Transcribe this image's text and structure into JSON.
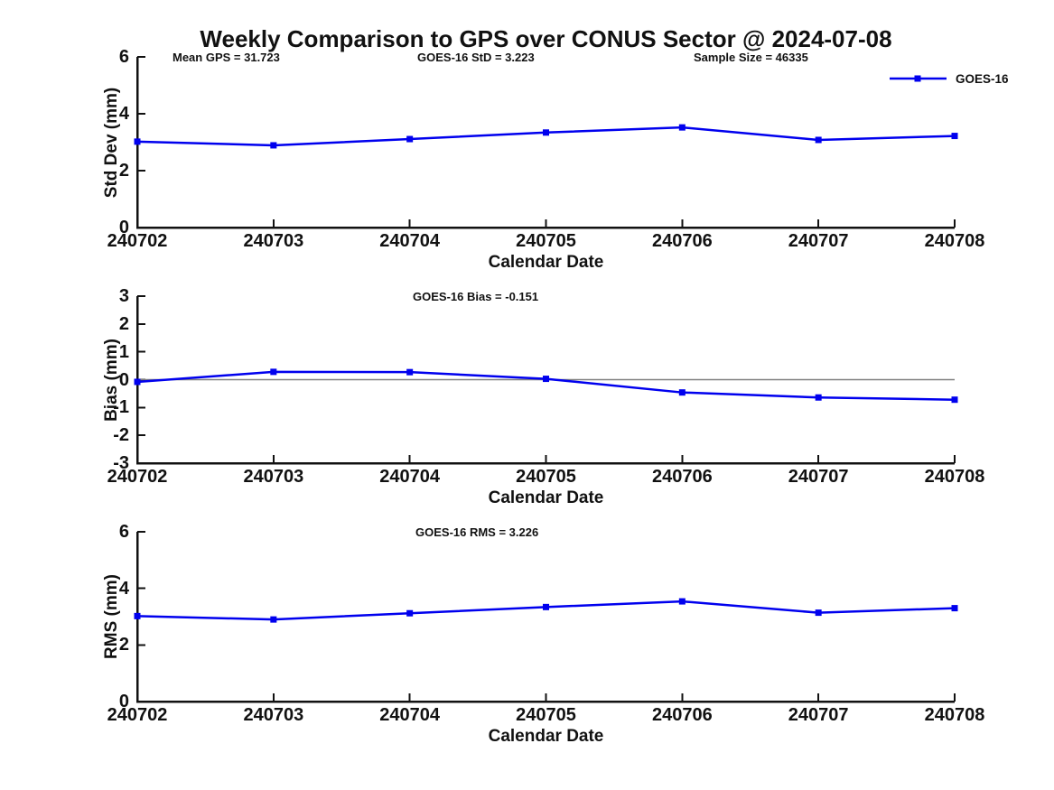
{
  "title": "Weekly Comparison to GPS over CONUS Sector @ 2024-07-08",
  "legend": {
    "label": "GOES-16"
  },
  "colors": {
    "line": "#0000EE",
    "zero_line": "#808080",
    "axis": "#111111"
  },
  "chart_data": [
    {
      "type": "line",
      "panel": "std-dev",
      "annotations": [
        "Mean GPS = 31.723",
        "GOES-16 StD = 3.223",
        "Sample Size = 46335"
      ],
      "categories": [
        "240702",
        "240703",
        "240704",
        "240705",
        "240706",
        "240707",
        "240708"
      ],
      "series": [
        {
          "name": "GOES-16",
          "values": [
            3.02,
            2.89,
            3.11,
            3.34,
            3.52,
            3.08,
            3.22
          ]
        }
      ],
      "xlabel": "Calendar Date",
      "ylabel": "Std Dev (mm)",
      "ylim": [
        0,
        6
      ],
      "yticks": [
        0,
        2,
        4,
        6
      ],
      "zero_line": false,
      "grid": false,
      "legend_position": "top-right"
    },
    {
      "type": "line",
      "panel": "bias",
      "annotations": [
        "GOES-16 Bias  = -0.151"
      ],
      "categories": [
        "240702",
        "240703",
        "240704",
        "240705",
        "240706",
        "240707",
        "240708"
      ],
      "series": [
        {
          "name": "GOES-16",
          "values": [
            -0.08,
            0.28,
            0.27,
            0.03,
            -0.46,
            -0.64,
            -0.72
          ]
        }
      ],
      "xlabel": "Calendar Date",
      "ylabel": "Bias (mm)",
      "ylim": [
        -3,
        3
      ],
      "yticks": [
        -3,
        -2,
        -1,
        0,
        1,
        2,
        3
      ],
      "zero_line": true,
      "grid": false,
      "legend_position": "none"
    },
    {
      "type": "line",
      "panel": "rms",
      "annotations": [
        "GOES-16 RMS = 3.226"
      ],
      "categories": [
        "240702",
        "240703",
        "240704",
        "240705",
        "240706",
        "240707",
        "240708"
      ],
      "series": [
        {
          "name": "GOES-16",
          "values": [
            3.02,
            2.9,
            3.12,
            3.34,
            3.54,
            3.14,
            3.3
          ]
        }
      ],
      "xlabel": "Calendar Date",
      "ylabel": "RMS (mm)",
      "ylim": [
        0,
        6
      ],
      "yticks": [
        0,
        2,
        4,
        6
      ],
      "zero_line": false,
      "grid": false,
      "legend_position": "none"
    }
  ]
}
